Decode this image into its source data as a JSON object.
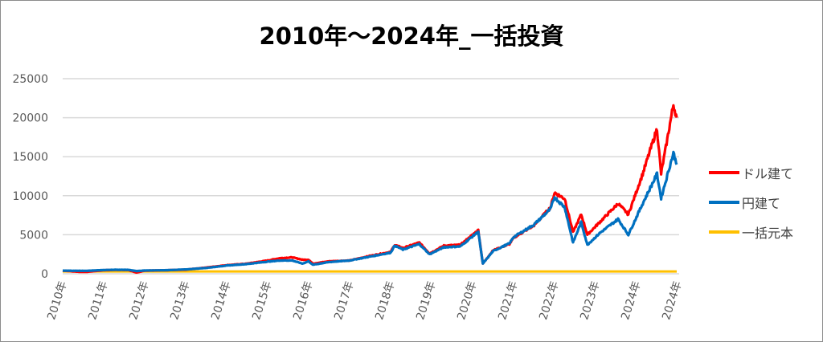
{
  "chart_data": {
    "type": "line",
    "title": "2010年～2024年_一括投資",
    "xlabel": "",
    "ylabel": "",
    "ylim": [
      0,
      25000
    ],
    "yticks": [
      "0",
      "5000",
      "10000",
      "15000",
      "20000",
      "25000"
    ],
    "xticks": [
      "2010年",
      "2011年",
      "2012年",
      "2013年",
      "2014年",
      "2015年",
      "2016年",
      "2017年",
      "2018年",
      "2019年",
      "2020年",
      "2021年",
      "2022年",
      "2023年",
      "2024年",
      "2024年"
    ],
    "grid": true,
    "legend_position": "right",
    "x": [
      2010.0,
      2010.4,
      2010.6,
      2011.0,
      2011.3,
      2011.6,
      2011.8,
      2012.0,
      2012.5,
      2013.0,
      2013.5,
      2014.0,
      2014.5,
      2015.0,
      2015.3,
      2015.6,
      2015.85,
      2016.0,
      2016.1,
      2016.5,
      2017.0,
      2017.5,
      2018.0,
      2018.1,
      2018.3,
      2018.7,
      2018.95,
      2019.3,
      2019.7,
      2020.14,
      2020.25,
      2020.5,
      2020.9,
      2021.0,
      2021.5,
      2021.9,
      2022.0,
      2022.25,
      2022.45,
      2022.65,
      2022.8,
      2023.1,
      2023.55,
      2023.8,
      2024.15,
      2024.5,
      2024.6,
      2024.9,
      2024.98
    ],
    "series": [
      {
        "name": "ドル建て",
        "color": "#ff0000",
        "values": [
          400,
          250,
          250,
          450,
          500,
          480,
          150,
          400,
          450,
          520,
          800,
          1100,
          1300,
          1700,
          2000,
          2100,
          1800,
          1800,
          1300,
          1600,
          1700,
          2300,
          2800,
          3700,
          3300,
          4000,
          2600,
          3600,
          3700,
          5600,
          1300,
          3000,
          3800,
          4600,
          6200,
          8500,
          10400,
          9600,
          5300,
          7600,
          5000,
          6600,
          9000,
          7600,
          12800,
          18600,
          12800,
          21700,
          20000
        ]
      },
      {
        "name": "円建て",
        "color": "#0070c0",
        "values": [
          400,
          380,
          380,
          480,
          520,
          500,
          350,
          420,
          450,
          550,
          750,
          1050,
          1250,
          1550,
          1700,
          1700,
          1300,
          1600,
          1150,
          1500,
          1700,
          2200,
          2700,
          3600,
          3100,
          3800,
          2500,
          3400,
          3500,
          5400,
          1300,
          2900,
          3900,
          4700,
          6300,
          8300,
          9800,
          8500,
          4000,
          6600,
          3700,
          5200,
          7000,
          5000,
          9000,
          12800,
          9700,
          15500,
          14000
        ]
      },
      {
        "name": "一括元本",
        "color": "#ffc000",
        "values": [
          300,
          300,
          300,
          300,
          300,
          300,
          300,
          300,
          300,
          300,
          300,
          300,
          300,
          300,
          300,
          300,
          300,
          300,
          300,
          300,
          300,
          300,
          300,
          300,
          300,
          300,
          300,
          300,
          300,
          300,
          300,
          300,
          300,
          300,
          300,
          300,
          300,
          300,
          300,
          300,
          300,
          300,
          300,
          300,
          300,
          300,
          300,
          300,
          300
        ]
      }
    ]
  }
}
